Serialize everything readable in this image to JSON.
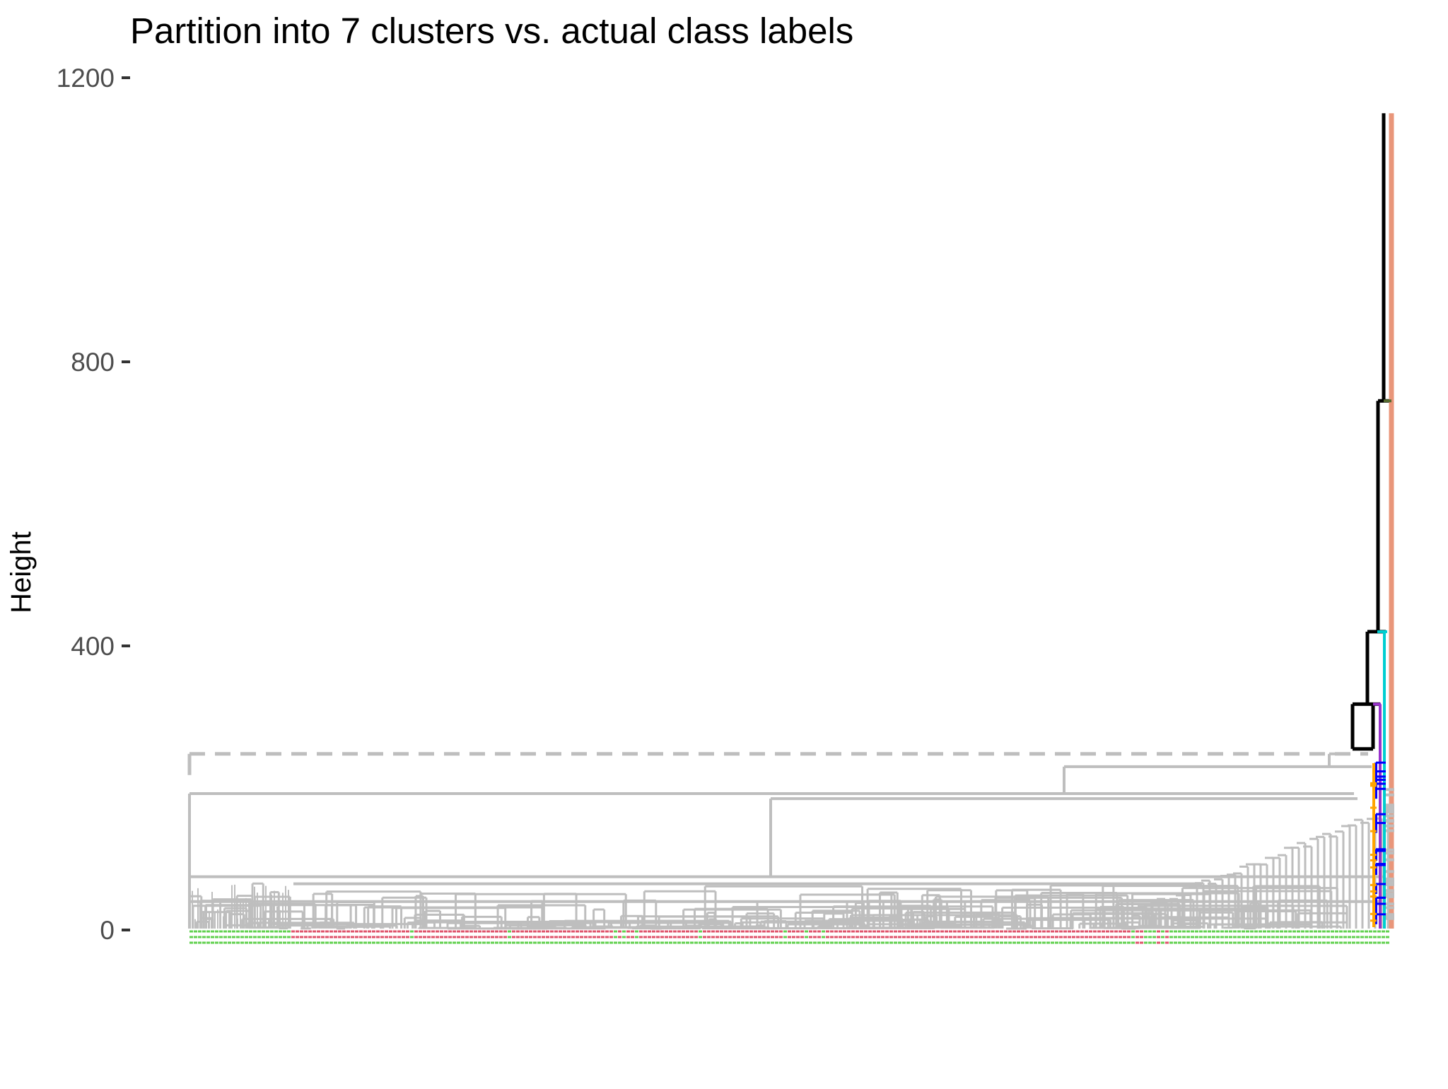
{
  "chart_data": {
    "type": "dendrogram",
    "title": "Partition into 7 clusters vs. actual class labels",
    "xlabel": "",
    "ylabel": "Height",
    "ylim": [
      0,
      1200
    ],
    "y_ticks": [
      "0",
      "400",
      "800",
      "1200"
    ],
    "grid": false,
    "legend": "none",
    "num_clusters": 7,
    "cut_height": 248,
    "leaf_label_colors": [
      "#61D04F",
      "#DF536B"
    ],
    "merges": [
      {
        "height": 1150,
        "color": "#000000"
      },
      {
        "height": 745,
        "color": "#000000"
      },
      {
        "height": 420,
        "color": "#000000"
      },
      {
        "height": 318,
        "color": "#000000"
      },
      {
        "height": 255,
        "color": "#000000"
      },
      {
        "height": 248,
        "color": "#BEBEBE"
      },
      {
        "height": 230,
        "color": "#BEBEBE"
      },
      {
        "height": 192,
        "color": "#BEBEBE"
      },
      {
        "height": 185,
        "color": "#BEBEBE"
      },
      {
        "height": 75,
        "color": "#BEBEBE"
      },
      {
        "height": 40,
        "color": "#BEBEBE"
      }
    ],
    "cluster_colors": [
      "#BEBEBE",
      "#FFA500",
      "#0000FF",
      "#9932CC",
      "#00CED1",
      "#556B2F",
      "#E9967A"
    ]
  }
}
